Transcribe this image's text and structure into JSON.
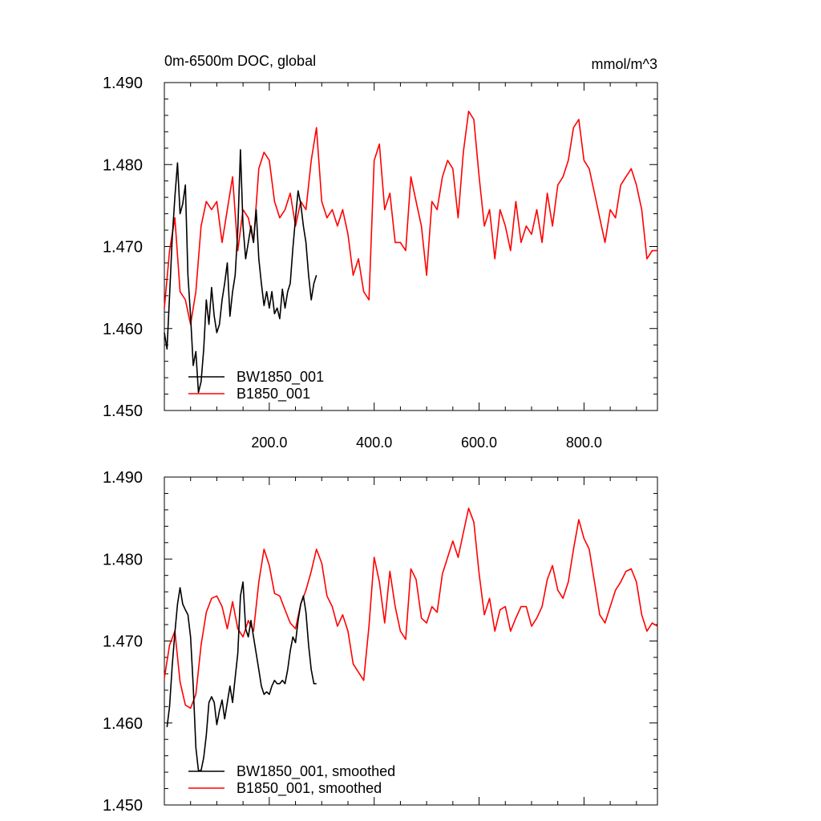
{
  "chart_data": [
    {
      "type": "line",
      "title": "0m-6500m DOC, global",
      "units": "mmol/m^3",
      "xlabel": "",
      "ylabel": "",
      "xlim": [
        0,
        940
      ],
      "ylim": [
        1.45,
        1.49
      ],
      "x_ticks": [
        200,
        400,
        600,
        800
      ],
      "x_tick_labels": [
        "200.0",
        "400.0",
        "600.0",
        "800.0"
      ],
      "y_ticks": [
        1.45,
        1.46,
        1.47,
        1.48,
        1.49
      ],
      "y_tick_labels": [
        "1.450",
        "1.460",
        "1.470",
        "1.480",
        "1.490"
      ],
      "grid": false,
      "legend_position": "bottom-left",
      "series": [
        {
          "name": "BW1850_001",
          "color": "#000000",
          "x": [
            0,
            5,
            10,
            15,
            20,
            25,
            30,
            35,
            40,
            45,
            50,
            55,
            60,
            65,
            70,
            75,
            80,
            85,
            90,
            95,
            100,
            105,
            110,
            115,
            120,
            125,
            130,
            135,
            140,
            145,
            150,
            155,
            160,
            165,
            170,
            175,
            180,
            185,
            190,
            195,
            200,
            205,
            210,
            215,
            220,
            225,
            230,
            235,
            240,
            245,
            250,
            255,
            260,
            265,
            270,
            275,
            280,
            285,
            290
          ],
          "values": [
            1.4595,
            1.4575,
            1.464,
            1.471,
            1.476,
            1.4802,
            1.474,
            1.4752,
            1.4775,
            1.4665,
            1.4615,
            1.4555,
            1.4572,
            1.4522,
            1.4535,
            1.4575,
            1.4635,
            1.4605,
            1.465,
            1.4615,
            1.4595,
            1.4605,
            1.4635,
            1.4655,
            1.468,
            1.4615,
            1.4645,
            1.4665,
            1.472,
            1.4818,
            1.4725,
            1.4685,
            1.4705,
            1.4725,
            1.4705,
            1.4745,
            1.4685,
            1.4655,
            1.4628,
            1.4645,
            1.4625,
            1.4645,
            1.4618,
            1.4625,
            1.4612,
            1.4648,
            1.4625,
            1.4645,
            1.4655,
            1.4698,
            1.4735,
            1.4768,
            1.4752,
            1.4725,
            1.4705,
            1.4665,
            1.4635,
            1.4655,
            1.4665
          ]
        },
        {
          "name": "B1850_001",
          "color": "#ff0000",
          "x": [
            0,
            10,
            20,
            30,
            40,
            50,
            60,
            70,
            80,
            90,
            100,
            110,
            120,
            130,
            140,
            150,
            160,
            170,
            180,
            190,
            200,
            210,
            220,
            230,
            240,
            250,
            260,
            270,
            280,
            290,
            300,
            310,
            320,
            330,
            340,
            350,
            360,
            370,
            380,
            390,
            400,
            410,
            420,
            430,
            440,
            450,
            460,
            470,
            480,
            490,
            500,
            510,
            520,
            530,
            540,
            550,
            560,
            570,
            580,
            590,
            600,
            610,
            620,
            630,
            640,
            650,
            660,
            670,
            680,
            690,
            700,
            710,
            720,
            730,
            740,
            750,
            760,
            770,
            780,
            790,
            800,
            810,
            820,
            830,
            840,
            850,
            860,
            870,
            880,
            890,
            900,
            910,
            920,
            930,
            940
          ],
          "values": [
            1.4625,
            1.4695,
            1.4735,
            1.4645,
            1.4635,
            1.4605,
            1.4645,
            1.4725,
            1.4755,
            1.4745,
            1.4755,
            1.4705,
            1.4745,
            1.4785,
            1.4695,
            1.4745,
            1.4735,
            1.4705,
            1.4795,
            1.4815,
            1.4805,
            1.4755,
            1.4735,
            1.4745,
            1.4765,
            1.4725,
            1.4755,
            1.4745,
            1.4805,
            1.4845,
            1.4755,
            1.4735,
            1.4745,
            1.4725,
            1.4745,
            1.4715,
            1.4665,
            1.4685,
            1.4645,
            1.4635,
            1.4805,
            1.4825,
            1.4745,
            1.4765,
            1.4705,
            1.4705,
            1.4695,
            1.4785,
            1.4755,
            1.4725,
            1.4665,
            1.4755,
            1.4745,
            1.4785,
            1.4805,
            1.4795,
            1.4735,
            1.4815,
            1.4865,
            1.4855,
            1.4785,
            1.4725,
            1.4745,
            1.4685,
            1.4745,
            1.4725,
            1.4695,
            1.4755,
            1.4705,
            1.4725,
            1.4715,
            1.4745,
            1.4705,
            1.4765,
            1.4725,
            1.4775,
            1.4785,
            1.4805,
            1.4845,
            1.4855,
            1.4805,
            1.4795,
            1.4765,
            1.4735,
            1.4705,
            1.4745,
            1.4735,
            1.4775,
            1.4785,
            1.4795,
            1.4775,
            1.4745,
            1.4685,
            1.4695,
            1.4695
          ]
        }
      ],
      "legend": [
        "BW1850_001",
        "B1850_001"
      ]
    },
    {
      "type": "line",
      "title": "",
      "xlabel": "",
      "ylabel": "",
      "xlim": [
        0,
        940
      ],
      "ylim": [
        1.45,
        1.49
      ],
      "x_ticks": [
        200,
        400,
        600,
        800
      ],
      "x_tick_labels": [],
      "y_ticks": [
        1.45,
        1.46,
        1.47,
        1.48,
        1.49
      ],
      "y_tick_labels": [
        "1.450",
        "1.460",
        "1.470",
        "1.480",
        "1.490"
      ],
      "grid": false,
      "legend_position": "bottom-left",
      "series": [
        {
          "name": "BW1850_001, smoothed",
          "color": "#000000",
          "x": [
            5,
            10,
            15,
            20,
            25,
            30,
            35,
            40,
            45,
            50,
            55,
            60,
            65,
            70,
            75,
            80,
            85,
            90,
            95,
            100,
            105,
            110,
            115,
            120,
            125,
            130,
            135,
            140,
            145,
            150,
            155,
            160,
            165,
            170,
            175,
            180,
            185,
            190,
            195,
            200,
            205,
            210,
            215,
            220,
            225,
            230,
            235,
            240,
            245,
            250,
            255,
            260,
            265,
            270,
            275,
            280,
            285,
            290
          ],
          "values": [
            1.4595,
            1.462,
            1.467,
            1.471,
            1.4745,
            1.4765,
            1.4745,
            1.4738,
            1.4732,
            1.4705,
            1.4645,
            1.457,
            1.4542,
            1.4542,
            1.4558,
            1.4585,
            1.4625,
            1.4632,
            1.4625,
            1.4598,
            1.4615,
            1.4628,
            1.4605,
            1.4625,
            1.4645,
            1.4625,
            1.4655,
            1.4685,
            1.4755,
            1.4772,
            1.4715,
            1.4705,
            1.4725,
            1.4705,
            1.4685,
            1.4665,
            1.4645,
            1.4635,
            1.4638,
            1.4635,
            1.4645,
            1.4652,
            1.4648,
            1.4648,
            1.4652,
            1.4648,
            1.4665,
            1.4688,
            1.4705,
            1.4698,
            1.4725,
            1.4745,
            1.4755,
            1.4735,
            1.4695,
            1.4665,
            1.4648,
            1.4648
          ]
        },
        {
          "name": "B1850_001, smoothed",
          "color": "#ff0000",
          "x": [
            0,
            10,
            20,
            30,
            40,
            50,
            60,
            70,
            80,
            90,
            100,
            110,
            120,
            130,
            140,
            150,
            160,
            170,
            180,
            190,
            200,
            210,
            220,
            230,
            240,
            250,
            260,
            270,
            280,
            290,
            300,
            310,
            320,
            330,
            340,
            350,
            360,
            370,
            380,
            390,
            400,
            410,
            420,
            430,
            440,
            450,
            460,
            470,
            480,
            490,
            500,
            510,
            520,
            530,
            540,
            550,
            560,
            570,
            580,
            590,
            600,
            610,
            620,
            630,
            640,
            650,
            660,
            670,
            680,
            690,
            700,
            710,
            720,
            730,
            740,
            750,
            760,
            770,
            780,
            790,
            800,
            810,
            820,
            830,
            840,
            850,
            860,
            870,
            880,
            890,
            900,
            910,
            920,
            930,
            940
          ],
          "values": [
            1.4655,
            1.4695,
            1.4712,
            1.465,
            1.4622,
            1.4618,
            1.4635,
            1.4695,
            1.4735,
            1.4752,
            1.4755,
            1.4742,
            1.4715,
            1.4748,
            1.4715,
            1.4705,
            1.4725,
            1.4712,
            1.4772,
            1.4812,
            1.4792,
            1.4758,
            1.4755,
            1.4738,
            1.4722,
            1.4715,
            1.4745,
            1.4762,
            1.4785,
            1.4812,
            1.4795,
            1.4755,
            1.4742,
            1.4718,
            1.4732,
            1.4712,
            1.4672,
            1.4662,
            1.4652,
            1.4718,
            1.4802,
            1.4772,
            1.4722,
            1.4785,
            1.4742,
            1.4712,
            1.4702,
            1.4788,
            1.4775,
            1.4728,
            1.4722,
            1.4742,
            1.4735,
            1.4782,
            1.4802,
            1.4822,
            1.4802,
            1.4832,
            1.4862,
            1.4845,
            1.4782,
            1.4732,
            1.4752,
            1.4712,
            1.4738,
            1.4742,
            1.4712,
            1.4728,
            1.4742,
            1.4742,
            1.4718,
            1.4728,
            1.4742,
            1.4775,
            1.4792,
            1.4762,
            1.4752,
            1.4772,
            1.4812,
            1.4848,
            1.4825,
            1.4812,
            1.4772,
            1.4732,
            1.4722,
            1.4742,
            1.4762,
            1.4772,
            1.4785,
            1.4788,
            1.4772,
            1.4732,
            1.4712,
            1.4722,
            1.4718
          ]
        }
      ],
      "legend": [
        "BW1850_001, smoothed",
        "B1850_001, smoothed"
      ]
    }
  ]
}
